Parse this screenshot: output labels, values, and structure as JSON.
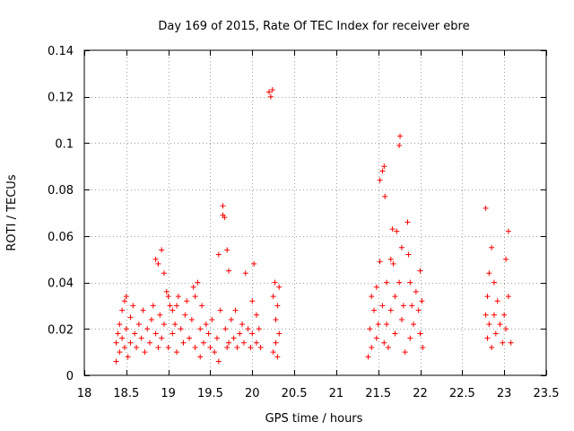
{
  "chart_data": {
    "type": "scatter",
    "title": "Day 169 of 2015, Rate Of TEC Index for receiver ebre",
    "xlabel": "GPS time / hours",
    "ylabel": "ROTI / TECUs",
    "xlim": [
      18,
      23.5
    ],
    "ylim": [
      0,
      0.14
    ],
    "xticks": [
      18,
      18.5,
      19,
      19.5,
      20,
      20.5,
      21,
      21.5,
      22,
      22.5,
      23,
      23.5
    ],
    "xtick_labels": [
      "18",
      "18.5",
      "19",
      "19.5",
      "20",
      "20.5",
      "21",
      "21.5",
      "22",
      "22.5",
      "23",
      "23.5"
    ],
    "yticks": [
      0,
      0.02,
      0.04,
      0.06,
      0.08,
      0.1,
      0.12,
      0.14
    ],
    "ytick_labels": [
      "0",
      "0.02",
      "0.04",
      "0.06",
      "0.08",
      "0.1",
      "0.12",
      "0.14"
    ],
    "grid": true,
    "marker": "+",
    "marker_color": "#ff0000",
    "series": [
      {
        "name": "ROTI",
        "color": "#ff0000",
        "points": [
          [
            18.38,
            0.006
          ],
          [
            18.38,
            0.014
          ],
          [
            18.4,
            0.018
          ],
          [
            18.42,
            0.022
          ],
          [
            18.42,
            0.01
          ],
          [
            18.45,
            0.028
          ],
          [
            18.45,
            0.016
          ],
          [
            18.48,
            0.032
          ],
          [
            18.48,
            0.012
          ],
          [
            18.5,
            0.034
          ],
          [
            18.5,
            0.02
          ],
          [
            18.52,
            0.008
          ],
          [
            18.55,
            0.025
          ],
          [
            18.55,
            0.014
          ],
          [
            18.58,
            0.03
          ],
          [
            18.6,
            0.018
          ],
          [
            18.62,
            0.012
          ],
          [
            18.65,
            0.022
          ],
          [
            18.68,
            0.016
          ],
          [
            18.7,
            0.028
          ],
          [
            18.72,
            0.01
          ],
          [
            18.75,
            0.02
          ],
          [
            18.78,
            0.014
          ],
          [
            18.8,
            0.024
          ],
          [
            18.82,
            0.03
          ],
          [
            18.85,
            0.018
          ],
          [
            18.85,
            0.05
          ],
          [
            18.88,
            0.048
          ],
          [
            18.88,
            0.012
          ],
          [
            18.9,
            0.026
          ],
          [
            18.92,
            0.054
          ],
          [
            18.92,
            0.016
          ],
          [
            18.95,
            0.044
          ],
          [
            18.95,
            0.022
          ],
          [
            18.98,
            0.036
          ],
          [
            19.0,
            0.034
          ],
          [
            19.0,
            0.012
          ],
          [
            19.02,
            0.03
          ],
          [
            19.05,
            0.018
          ],
          [
            19.05,
            0.028
          ],
          [
            19.08,
            0.022
          ],
          [
            19.1,
            0.03
          ],
          [
            19.1,
            0.01
          ],
          [
            19.12,
            0.034
          ],
          [
            19.15,
            0.02
          ],
          [
            19.18,
            0.014
          ],
          [
            19.2,
            0.026
          ],
          [
            19.22,
            0.032
          ],
          [
            19.25,
            0.016
          ],
          [
            19.28,
            0.024
          ],
          [
            19.3,
            0.038
          ],
          [
            19.32,
            0.034
          ],
          [
            19.32,
            0.012
          ],
          [
            19.35,
            0.04
          ],
          [
            19.38,
            0.02
          ],
          [
            19.38,
            0.008
          ],
          [
            19.4,
            0.03
          ],
          [
            19.42,
            0.014
          ],
          [
            19.45,
            0.022
          ],
          [
            19.48,
            0.018
          ],
          [
            19.5,
            0.012
          ],
          [
            19.52,
            0.024
          ],
          [
            19.55,
            0.01
          ],
          [
            19.58,
            0.016
          ],
          [
            19.6,
            0.006
          ],
          [
            19.6,
            0.052
          ],
          [
            19.62,
            0.028
          ],
          [
            19.65,
            0.073
          ],
          [
            19.65,
            0.069
          ],
          [
            19.67,
            0.068
          ],
          [
            19.68,
            0.02
          ],
          [
            19.7,
            0.054
          ],
          [
            19.7,
            0.012
          ],
          [
            19.72,
            0.045
          ],
          [
            19.72,
            0.014
          ],
          [
            19.75,
            0.024
          ],
          [
            19.78,
            0.016
          ],
          [
            19.8,
            0.028
          ],
          [
            19.82,
            0.012
          ],
          [
            19.85,
            0.018
          ],
          [
            19.88,
            0.022
          ],
          [
            19.9,
            0.014
          ],
          [
            19.92,
            0.044
          ],
          [
            19.95,
            0.02
          ],
          [
            19.98,
            0.012
          ],
          [
            20.0,
            0.032
          ],
          [
            20.0,
            0.018
          ],
          [
            20.02,
            0.048
          ],
          [
            20.05,
            0.026
          ],
          [
            20.05,
            0.014
          ],
          [
            20.08,
            0.02
          ],
          [
            20.1,
            0.012
          ],
          [
            20.2,
            0.122
          ],
          [
            20.22,
            0.12
          ],
          [
            20.24,
            0.123
          ],
          [
            20.25,
            0.034
          ],
          [
            20.25,
            0.01
          ],
          [
            20.27,
            0.04
          ],
          [
            20.28,
            0.024
          ],
          [
            20.28,
            0.014
          ],
          [
            20.3,
            0.03
          ],
          [
            20.3,
            0.008
          ],
          [
            20.32,
            0.018
          ],
          [
            20.32,
            0.038
          ],
          [
            21.38,
            0.008
          ],
          [
            21.4,
            0.02
          ],
          [
            21.42,
            0.034
          ],
          [
            21.42,
            0.012
          ],
          [
            21.45,
            0.028
          ],
          [
            21.48,
            0.016
          ],
          [
            21.48,
            0.038
          ],
          [
            21.5,
            0.022
          ],
          [
            21.52,
            0.084
          ],
          [
            21.52,
            0.049
          ],
          [
            21.55,
            0.088
          ],
          [
            21.55,
            0.03
          ],
          [
            21.57,
            0.09
          ],
          [
            21.57,
            0.014
          ],
          [
            21.58,
            0.077
          ],
          [
            21.6,
            0.04
          ],
          [
            21.6,
            0.022
          ],
          [
            21.62,
            0.012
          ],
          [
            21.65,
            0.05
          ],
          [
            21.65,
            0.028
          ],
          [
            21.67,
            0.063
          ],
          [
            21.68,
            0.048
          ],
          [
            21.7,
            0.034
          ],
          [
            21.7,
            0.018
          ],
          [
            21.72,
            0.062
          ],
          [
            21.75,
            0.099
          ],
          [
            21.75,
            0.04
          ],
          [
            21.76,
            0.103
          ],
          [
            21.78,
            0.055
          ],
          [
            21.78,
            0.024
          ],
          [
            21.8,
            0.03
          ],
          [
            21.82,
            0.01
          ],
          [
            21.85,
            0.066
          ],
          [
            21.86,
            0.052
          ],
          [
            21.88,
            0.04
          ],
          [
            21.88,
            0.016
          ],
          [
            21.9,
            0.03
          ],
          [
            21.92,
            0.022
          ],
          [
            21.95,
            0.036
          ],
          [
            21.98,
            0.028
          ],
          [
            22.0,
            0.045
          ],
          [
            22.0,
            0.018
          ],
          [
            22.02,
            0.032
          ],
          [
            22.03,
            0.012
          ],
          [
            22.78,
            0.072
          ],
          [
            22.78,
            0.026
          ],
          [
            22.8,
            0.016
          ],
          [
            22.8,
            0.034
          ],
          [
            22.82,
            0.044
          ],
          [
            22.82,
            0.022
          ],
          [
            22.85,
            0.055
          ],
          [
            22.85,
            0.012
          ],
          [
            22.88,
            0.04
          ],
          [
            22.88,
            0.026
          ],
          [
            22.9,
            0.018
          ],
          [
            22.92,
            0.032
          ],
          [
            22.95,
            0.022
          ],
          [
            22.98,
            0.014
          ],
          [
            23.0,
            0.026
          ],
          [
            23.02,
            0.05
          ],
          [
            23.02,
            0.02
          ],
          [
            23.05,
            0.062
          ],
          [
            23.05,
            0.034
          ],
          [
            23.08,
            0.014
          ]
        ]
      }
    ]
  }
}
